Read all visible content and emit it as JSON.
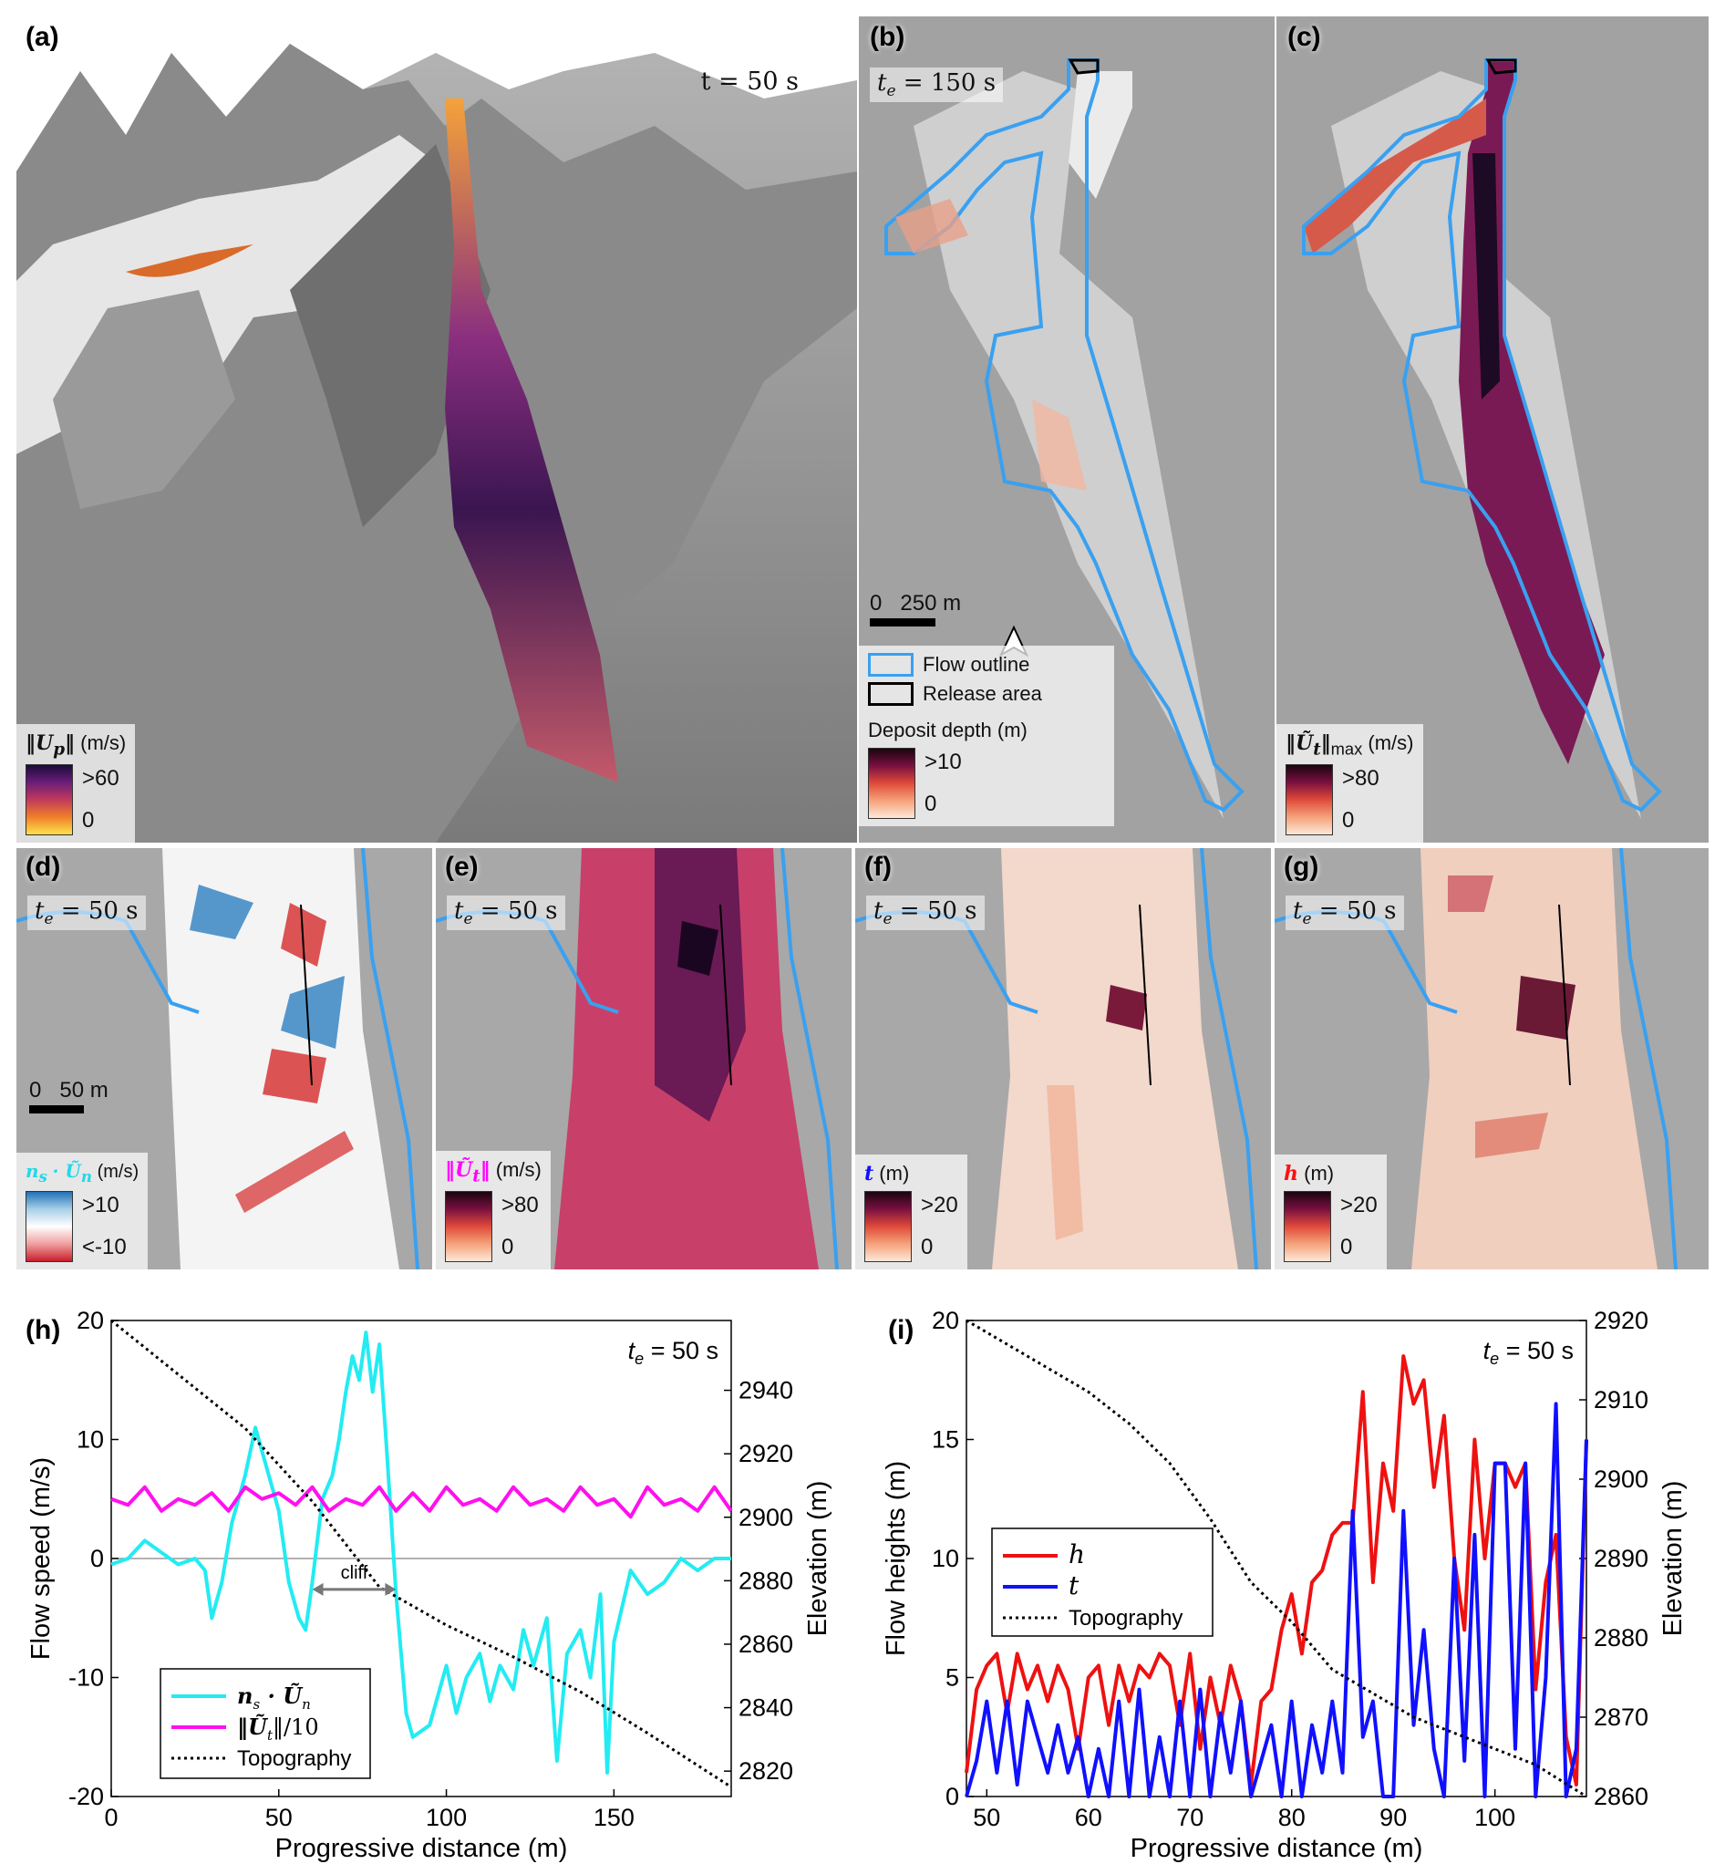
{
  "panels": {
    "a": {
      "label": "(a)",
      "time": "t = 50 s",
      "legend_title_math": "‖U",
      "legend_title_sub": "p",
      "legend_unit": "(m/s)",
      "cbar_max": ">60",
      "cbar_min": "0",
      "cmap_colors": [
        "#1a0a3a",
        "#6b1d7a",
        "#c13a5a",
        "#f07f2a",
        "#fde24a"
      ]
    },
    "b": {
      "label": "(b)",
      "time_symbol": "t",
      "time_sub": "e",
      "time_value": "= 150 s",
      "scale_zero": "0",
      "scale_value": "250 m",
      "legend_flow_outline": "Flow outline",
      "legend_release_area": "Release area",
      "legend_title": "Deposit depth (m)",
      "cbar_max": ">10",
      "cbar_min": "0",
      "outline_color": "#3aa0f0"
    },
    "c": {
      "label": "(c)",
      "legend_title_math": "‖Ũ",
      "legend_title_sub": "t",
      "legend_title_sub2": "max",
      "legend_unit": "(m/s)",
      "cbar_max": ">80",
      "cbar_min": "0"
    },
    "d": {
      "label": "(d)",
      "time_symbol": "t",
      "time_sub": "e",
      "time_value": "= 50 s",
      "scale_zero": "0",
      "scale_value": "50 m",
      "legend_title_math": "n",
      "legend_title_rest": "· Ũ",
      "legend_unit": "(m/s)",
      "cbar_max": ">10",
      "cbar_min": "<-10",
      "title_color": "#22d8e8"
    },
    "e": {
      "label": "(e)",
      "time_symbol": "t",
      "time_sub": "e",
      "time_value": "= 50 s",
      "legend_title_math": "‖Ũ",
      "legend_title_sub": "t",
      "legend_unit": "(m/s)",
      "cbar_max": ">80",
      "cbar_min": "0",
      "title_color": "#ff00ff"
    },
    "f": {
      "label": "(f)",
      "time_symbol": "t",
      "time_sub": "e",
      "time_value": "= 50 s",
      "legend_title_math": "t",
      "legend_unit": "(m)",
      "cbar_max": ">20",
      "cbar_min": "0",
      "title_color": "#1010ff"
    },
    "g": {
      "label": "(g)",
      "time_symbol": "t",
      "time_sub": "e",
      "time_value": "= 50 s",
      "legend_title_math": "h",
      "legend_title_rest": "",
      "legend_unit": "(m)",
      "cbar_max": ">20",
      "cbar_min": "0",
      "title_color": "#ff1010"
    }
  },
  "chart_data": [
    {
      "panel_label": "(h)",
      "type": "line",
      "time_symbol": "t",
      "time_sub": "e",
      "time_value": "= 50 s",
      "xlabel": "Progressive distance (m)",
      "ylabel": "Flow speed (m/s)",
      "y2label": "Elevation (m)",
      "xlim": [
        0,
        185
      ],
      "ylim": [
        -20,
        20
      ],
      "y2lim": [
        2812,
        2962
      ],
      "xticks": [
        0,
        50,
        100,
        150
      ],
      "yticks": [
        -20,
        -10,
        0,
        10,
        20
      ],
      "y2ticks": [
        2820,
        2840,
        2860,
        2880,
        2900,
        2920,
        2940
      ],
      "annotation": "cliff",
      "annotation_range": [
        60,
        85
      ],
      "series": [
        {
          "name": "n_s^T · Ũ_n",
          "color": "#22ecf2",
          "axis": "left",
          "x": [
            0,
            5,
            10,
            15,
            20,
            25,
            28,
            30,
            33,
            36,
            40,
            43,
            46,
            50,
            53,
            56,
            58,
            60,
            63,
            66,
            68,
            70,
            72,
            74,
            76,
            78,
            80,
            82,
            85,
            88,
            90,
            95,
            100,
            103,
            106,
            110,
            113,
            116,
            120,
            123,
            126,
            130,
            133,
            136,
            140,
            143,
            146,
            148,
            150,
            155,
            160,
            165,
            170,
            175,
            180,
            185
          ],
          "y": [
            -0.5,
            0,
            1.5,
            0.5,
            -0.5,
            0,
            -1,
            -5,
            -2,
            3,
            7,
            11,
            8,
            4,
            -2,
            -5,
            -6,
            -2,
            5,
            7,
            10,
            14,
            17,
            15,
            19,
            14,
            18,
            10,
            -3,
            -13,
            -15,
            -14,
            -9,
            -13,
            -10,
            -8,
            -12,
            -9,
            -11,
            -6,
            -9,
            -5,
            -17,
            -8,
            -6,
            -10,
            -3,
            -18,
            -7,
            -1,
            -3,
            -2,
            0,
            -1,
            0,
            0
          ]
        },
        {
          "name": "‖Ũ_t‖/10",
          "color": "#ff10ee",
          "axis": "left",
          "x": [
            0,
            5,
            10,
            15,
            20,
            25,
            30,
            35,
            40,
            45,
            50,
            55,
            60,
            65,
            70,
            75,
            80,
            85,
            90,
            95,
            100,
            105,
            110,
            115,
            120,
            125,
            130,
            135,
            140,
            145,
            150,
            155,
            160,
            165,
            170,
            175,
            180,
            185
          ],
          "y": [
            5,
            4.5,
            6,
            4,
            5,
            4.5,
            5.5,
            4,
            6,
            5,
            5.5,
            4.5,
            6,
            4,
            5,
            4.5,
            6,
            4,
            5.5,
            4,
            6,
            4.5,
            5,
            4,
            6,
            4.5,
            5,
            4,
            6,
            4.5,
            5,
            3.5,
            6,
            4.5,
            5,
            4,
            6,
            4
          ]
        },
        {
          "name": "Topography",
          "color": "#000000",
          "axis": "right",
          "dash": "dotted",
          "x": [
            0,
            20,
            40,
            60,
            80,
            100,
            120,
            140,
            160,
            185
          ],
          "y": [
            2962,
            2945,
            2928,
            2905,
            2878,
            2866,
            2856,
            2845,
            2832,
            2815
          ]
        }
      ],
      "zero_line": true
    },
    {
      "panel_label": "(i)",
      "type": "line",
      "time_symbol": "t",
      "time_sub": "e",
      "time_value": "= 50 s",
      "xlabel": "Progressive distance (m)",
      "ylabel": "Flow heights (m)",
      "y2label": "Elevation (m)",
      "xlim": [
        48,
        109
      ],
      "ylim": [
        0,
        20
      ],
      "y2lim": [
        2860,
        2920
      ],
      "xticks": [
        50,
        60,
        70,
        80,
        90,
        100
      ],
      "yticks": [
        0,
        5,
        10,
        15,
        20
      ],
      "y2ticks": [
        2860,
        2870,
        2880,
        2890,
        2900,
        2910,
        2920
      ],
      "series": [
        {
          "name": "h",
          "color": "#ee1111",
          "axis": "left",
          "x": [
            48,
            49,
            50,
            51,
            52,
            53,
            54,
            55,
            56,
            57,
            58,
            59,
            60,
            61,
            62,
            63,
            64,
            65,
            66,
            67,
            68,
            69,
            70,
            71,
            72,
            73,
            74,
            75,
            76,
            77,
            78,
            79,
            80,
            81,
            82,
            83,
            84,
            85,
            86,
            87,
            88,
            89,
            90,
            91,
            92,
            93,
            94,
            95,
            96,
            97,
            98,
            99,
            100,
            101,
            102,
            103,
            104,
            105,
            106,
            107,
            108,
            109
          ],
          "y": [
            1,
            4.5,
            5.5,
            6,
            3.5,
            6,
            4.5,
            5.5,
            4,
            5.5,
            4.5,
            2,
            5,
            5.5,
            3,
            5.5,
            4,
            5.5,
            5,
            6,
            5.5,
            3,
            6,
            2,
            5,
            3,
            5.5,
            4,
            0.5,
            4,
            4.5,
            7,
            8.5,
            6,
            9,
            9.5,
            11,
            11.5,
            11.5,
            17,
            9,
            14,
            12,
            18.5,
            16.5,
            17.5,
            13,
            16,
            10,
            7,
            15,
            10,
            14,
            14,
            13,
            14,
            4.5,
            9,
            11,
            2.5,
            0.5,
            15
          ]
        },
        {
          "name": "t",
          "color": "#1010ff",
          "axis": "left",
          "x": [
            48,
            49,
            50,
            51,
            52,
            53,
            54,
            55,
            56,
            57,
            58,
            59,
            60,
            61,
            62,
            63,
            64,
            65,
            66,
            67,
            68,
            69,
            70,
            71,
            72,
            73,
            74,
            75,
            76,
            77,
            78,
            79,
            80,
            81,
            82,
            83,
            84,
            85,
            86,
            87,
            88,
            89,
            90,
            91,
            92,
            93,
            94,
            95,
            96,
            97,
            98,
            99,
            100,
            101,
            102,
            103,
            104,
            105,
            106,
            107,
            108,
            109
          ],
          "y": [
            0,
            1.5,
            4,
            1,
            4,
            0.5,
            4,
            2.5,
            1,
            3,
            1,
            2.5,
            0,
            2,
            0,
            4,
            0,
            4.5,
            0,
            2.5,
            0,
            4,
            0,
            4.5,
            0,
            3.5,
            1,
            4,
            0,
            1.5,
            3,
            0,
            4,
            0,
            3,
            1,
            4,
            1,
            12,
            2.5,
            4,
            0,
            0,
            12,
            3,
            7,
            2,
            0,
            10,
            1.5,
            11,
            0,
            14,
            14,
            2,
            14,
            0,
            5,
            16.5,
            0,
            2,
            15
          ]
        },
        {
          "name": "Topography",
          "color": "#000000",
          "axis": "right",
          "dash": "dotted",
          "x": [
            48,
            52,
            56,
            60,
            64,
            68,
            72,
            76,
            80,
            84,
            88,
            92,
            96,
            100,
            104,
            109
          ],
          "y": [
            2920,
            2917,
            2914,
            2911,
            2907,
            2902,
            2895,
            2887,
            2882,
            2876,
            2873,
            2870,
            2868,
            2866,
            2864,
            2860
          ]
        }
      ],
      "legend": [
        "h",
        "t",
        "Topography"
      ]
    }
  ],
  "legend_h": {
    "item1_math": "n",
    "item1_rest": "· Ũ",
    "item2": "‖Ũ",
    "item2_rest": "‖/10",
    "item3": "Topography"
  }
}
